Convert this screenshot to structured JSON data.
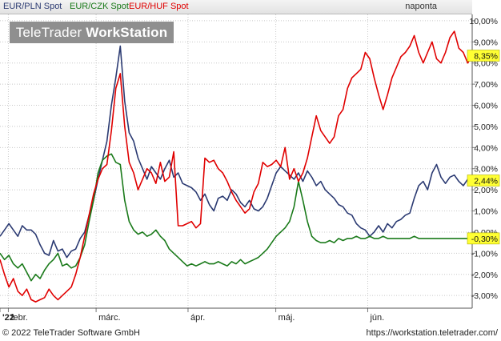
{
  "legend": {
    "items": [
      {
        "label": "EUR/PLN Spot",
        "color": "#2b3a72"
      },
      {
        "label": "EUR/CZK Spot",
        "color": "#1a7a1a"
      },
      {
        "label": "EUR/HUF Spot",
        "color": "#e00000"
      }
    ],
    "period": "naponta"
  },
  "logo": {
    "part1": "TeleTrader",
    "part2": "WorkStation"
  },
  "footer": {
    "copyright": "© 2022 TeleTrader Software GmbH",
    "url": "https://workstation.teletrader.com/"
  },
  "chart_data": {
    "type": "line",
    "y_tick_labels": [
      "10,00%",
      "9,00%",
      "8,00%",
      "7,00%",
      "6,00%",
      "5,00%",
      "4,00%",
      "3,00%",
      "2,00%",
      "1,00%",
      "0,00%",
      "-1,00%",
      "-2,00%",
      "-3,00%"
    ],
    "y_ticks": [
      10,
      9,
      8,
      7,
      6,
      5,
      4,
      3,
      2,
      1,
      0,
      -1,
      -2,
      -3
    ],
    "ylim": [
      -3.6,
      10.3
    ],
    "x_tick_labels": [
      "'22",
      "febr.",
      "márc.",
      "ápr.",
      "máj.",
      "jún."
    ],
    "x_ticks": [
      0,
      2,
      23,
      45,
      66,
      88
    ],
    "xlim": [
      0,
      113
    ],
    "grid": true,
    "series": [
      {
        "name": "EUR/PLN Spot",
        "color": "#2b3a72",
        "last_label": "2,44%",
        "values": [
          -0.2,
          0.1,
          0.4,
          0.1,
          -0.2,
          0.3,
          0.1,
          0.1,
          -0.1,
          -0.6,
          -1.0,
          -1.1,
          -0.4,
          -0.9,
          -0.8,
          -1.2,
          -0.9,
          -0.8,
          -0.3,
          0.0,
          0.8,
          1.5,
          2.5,
          3.4,
          4.3,
          6.0,
          7.3,
          8.8,
          6.2,
          4.7,
          4.3,
          3.5,
          3.0,
          2.5,
          3.1,
          2.8,
          2.5,
          3.0,
          3.4,
          2.6,
          2.8,
          2.3,
          2.2,
          2.1,
          1.9,
          1.5,
          1.8,
          1.3,
          1.0,
          1.6,
          1.7,
          1.5,
          2.0,
          1.8,
          1.4,
          1.2,
          1.5,
          1.1,
          1.0,
          1.2,
          1.6,
          2.2,
          2.8,
          3.1,
          2.9,
          2.7,
          2.5,
          2.8,
          2.4,
          2.9,
          2.6,
          2.2,
          2.4,
          2.0,
          1.8,
          1.6,
          1.3,
          1.2,
          0.9,
          0.8,
          0.4,
          0.2,
          0.1,
          -0.2,
          0.0,
          0.3,
          0.0,
          0.4,
          0.2,
          0.5,
          0.6,
          0.8,
          0.9,
          1.6,
          2.2,
          2.4,
          2.0,
          2.8,
          3.2,
          2.6,
          2.3,
          2.6,
          2.7,
          2.4,
          2.2,
          2.5,
          2.44
        ]
      },
      {
        "name": "EUR/CZK Spot",
        "color": "#1a7a1a",
        "last_label": "-0,30%",
        "values": [
          -1.0,
          -1.3,
          -1.1,
          -1.5,
          -1.7,
          -1.5,
          -1.9,
          -2.3,
          -2.0,
          -2.2,
          -1.8,
          -1.5,
          -1.3,
          -1.0,
          -1.6,
          -1.5,
          -1.7,
          -1.6,
          -1.2,
          -0.6,
          0.5,
          1.5,
          2.8,
          3.4,
          3.6,
          3.7,
          3.3,
          3.2,
          1.5,
          0.5,
          0.1,
          -0.1,
          0.0,
          -0.2,
          -0.1,
          0.1,
          -0.2,
          -0.4,
          -0.8,
          -1.0,
          -1.2,
          -1.4,
          -1.6,
          -1.5,
          -1.6,
          -1.5,
          -1.4,
          -1.5,
          -1.5,
          -1.4,
          -1.5,
          -1.6,
          -1.4,
          -1.5,
          -1.3,
          -1.5,
          -1.4,
          -1.3,
          -1.2,
          -1.0,
          -0.8,
          -0.5,
          -0.2,
          0.0,
          0.2,
          0.5,
          1.2,
          2.4,
          1.5,
          0.5,
          -0.2,
          -0.4,
          -0.5,
          -0.5,
          -0.4,
          -0.5,
          -0.3,
          -0.4,
          -0.3,
          -0.3,
          -0.2,
          -0.3,
          -0.3,
          -0.2,
          -0.3,
          -0.3,
          -0.2,
          -0.3,
          -0.3,
          -0.3,
          -0.3,
          -0.3,
          -0.3,
          -0.2,
          -0.3,
          -0.3,
          -0.3,
          -0.3,
          -0.3,
          -0.3,
          -0.3,
          -0.3,
          -0.3,
          -0.3,
          -0.3,
          -0.3,
          -0.3
        ]
      },
      {
        "name": "EUR/HUF Spot",
        "color": "#e00000",
        "last_label": "8,35%",
        "values": [
          -1.3,
          -2.0,
          -2.6,
          -2.2,
          -2.8,
          -3.0,
          -2.7,
          -3.2,
          -3.3,
          -3.2,
          -3.1,
          -2.7,
          -3.0,
          -3.2,
          -3.0,
          -2.8,
          -2.6,
          -2.0,
          -1.2,
          -0.2,
          0.8,
          1.8,
          2.5,
          3.0,
          3.2,
          4.8,
          6.8,
          7.5,
          5.0,
          3.3,
          2.8,
          2.0,
          2.5,
          3.0,
          2.8,
          2.3,
          3.3,
          2.4,
          2.6,
          3.8,
          0.3,
          0.3,
          0.4,
          0.5,
          0.2,
          0.4,
          3.5,
          3.3,
          3.4,
          3.0,
          2.8,
          2.4,
          1.9,
          1.5,
          1.2,
          0.9,
          1.1,
          1.9,
          2.3,
          3.3,
          3.1,
          3.2,
          3.4,
          3.1,
          4.0,
          2.5,
          3.0,
          2.4,
          2.8,
          3.5,
          4.5,
          5.5,
          4.8,
          4.5,
          4.2,
          4.5,
          5.5,
          5.8,
          6.8,
          7.3,
          7.5,
          7.7,
          8.5,
          8.2,
          7.3,
          6.5,
          5.8,
          6.5,
          7.3,
          7.8,
          8.3,
          8.5,
          8.8,
          9.3,
          8.5,
          8.0,
          8.5,
          9.0,
          8.2,
          8.0,
          8.5,
          9.2,
          9.5,
          8.7,
          8.5,
          8.0,
          8.35
        ]
      }
    ]
  }
}
